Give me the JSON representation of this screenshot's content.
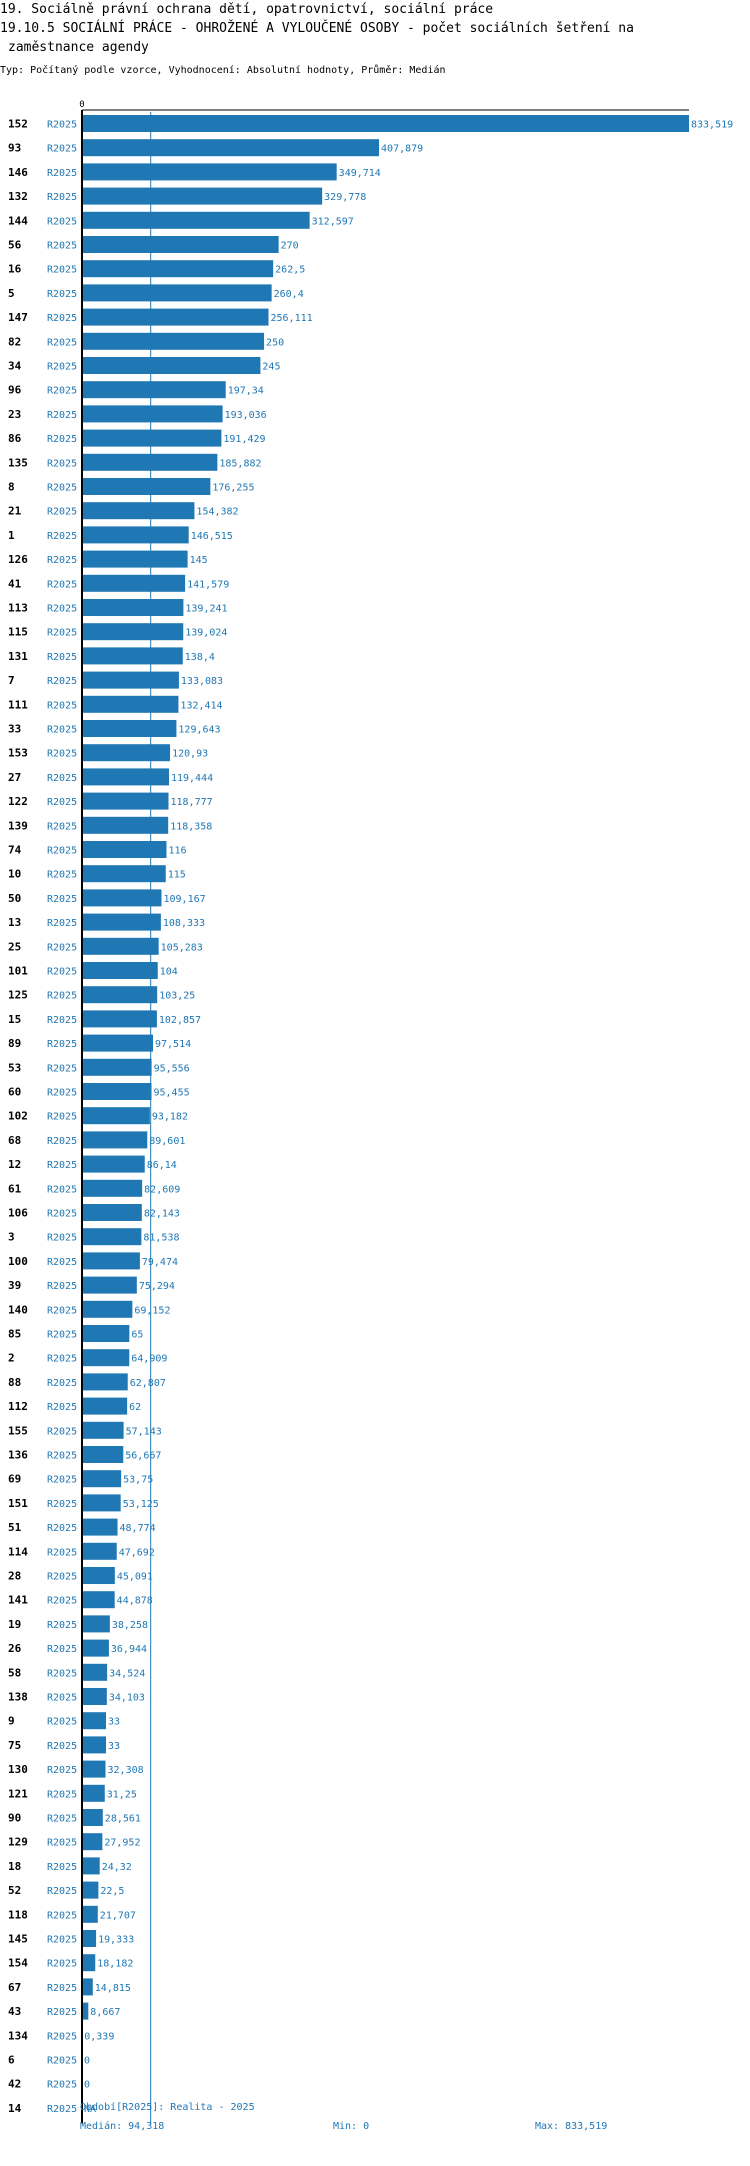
{
  "header": {
    "title_line1": "19. Sociálně právní ochrana dětí, opatrovnictví, sociální práce",
    "title_line2": "19.10.5 SOCIÁLNÍ PRÁCE - OHROŽENÉ A VYLOUČENÉ OSOBY - počet sociálních šetření na",
    "title_line3": "zaměstnance agendy",
    "subtitle": "Typ: Počítaný podle vzorce, Vyhodnocení: Absolutní hodnoty, Průměr: Medián"
  },
  "colors": {
    "bar": "#1f77b4",
    "label": "#1f77b4",
    "axis": "#000000"
  },
  "chart_data": {
    "type": "bar",
    "orientation": "horizontal",
    "series_label": "R2025",
    "axis_zero_label": "0",
    "xlim": [
      0,
      833.519
    ],
    "median": 94.318,
    "categories": [
      "152",
      "93",
      "146",
      "132",
      "144",
      "56",
      "16",
      "5",
      "147",
      "82",
      "34",
      "96",
      "23",
      "86",
      "135",
      "8",
      "21",
      "1",
      "126",
      "41",
      "113",
      "115",
      "131",
      "7",
      "111",
      "33",
      "153",
      "27",
      "122",
      "139",
      "74",
      "10",
      "50",
      "13",
      "25",
      "101",
      "125",
      "15",
      "89",
      "53",
      "60",
      "102",
      "68",
      "12",
      "61",
      "106",
      "3",
      "100",
      "39",
      "140",
      "85",
      "2",
      "88",
      "112",
      "155",
      "136",
      "69",
      "151",
      "51",
      "114",
      "28",
      "141",
      "19",
      "26",
      "58",
      "138",
      "9",
      "75",
      "130",
      "121",
      "90",
      "129",
      "18",
      "52",
      "118",
      "145",
      "154",
      "67",
      "43",
      "134",
      "6",
      "42",
      "14"
    ],
    "values": [
      833.519,
      407.879,
      349.714,
      329.778,
      312.597,
      270,
      262.5,
      260.4,
      256.111,
      250,
      245,
      197.34,
      193.036,
      191.429,
      185.882,
      176.255,
      154.382,
      146.515,
      145,
      141.579,
      139.241,
      139.024,
      138.4,
      133.083,
      132.414,
      129.643,
      120.93,
      119.444,
      118.777,
      118.358,
      116,
      115,
      109.167,
      108.333,
      105.283,
      104,
      103.25,
      102.857,
      97.514,
      95.556,
      95.455,
      93.182,
      89.601,
      86.14,
      82.609,
      82.143,
      81.538,
      79.474,
      75.294,
      69.152,
      65,
      64.909,
      62.807,
      62,
      57.143,
      56.667,
      53.75,
      53.125,
      48.774,
      47.692,
      45.091,
      44.878,
      38.258,
      36.944,
      34.524,
      34.103,
      33,
      33,
      32.308,
      31.25,
      28.561,
      27.952,
      24.32,
      22.5,
      21.707,
      19.333,
      18.182,
      14.815,
      8.667,
      0.339,
      0,
      0,
      null
    ],
    "value_labels": [
      "833,519",
      "407,879",
      "349,714",
      "329,778",
      "312,597",
      "270",
      "262,5",
      "260,4",
      "256,111",
      "250",
      "245",
      "197,34",
      "193,036",
      "191,429",
      "185,882",
      "176,255",
      "154,382",
      "146,515",
      "145",
      "141,579",
      "139,241",
      "139,024",
      "138,4",
      "133,083",
      "132,414",
      "129,643",
      "120,93",
      "119,444",
      "118,777",
      "118,358",
      "116",
      "115",
      "109,167",
      "108,333",
      "105,283",
      "104",
      "103,25",
      "102,857",
      "97,514",
      "95,556",
      "95,455",
      "93,182",
      "89,601",
      "86,14",
      "82,609",
      "82,143",
      "81,538",
      "79,474",
      "75,294",
      "69,152",
      "65",
      "64,909",
      "62,807",
      "62",
      "57,143",
      "56,667",
      "53,75",
      "53,125",
      "48,774",
      "47,692",
      "45,091",
      "44,878",
      "38,258",
      "36,944",
      "34,524",
      "34,103",
      "33",
      "33",
      "32,308",
      "31,25",
      "28,561",
      "27,952",
      "24,32",
      "22,5",
      "21,707",
      "19,333",
      "18,182",
      "14,815",
      "8,667",
      "0,339",
      "0",
      "0",
      "NA"
    ]
  },
  "footer": {
    "period": "Období[R2025]: Realita - 2025",
    "median": "Medián: 94,318",
    "min": "Min: 0",
    "max": "Max: 833,519"
  }
}
